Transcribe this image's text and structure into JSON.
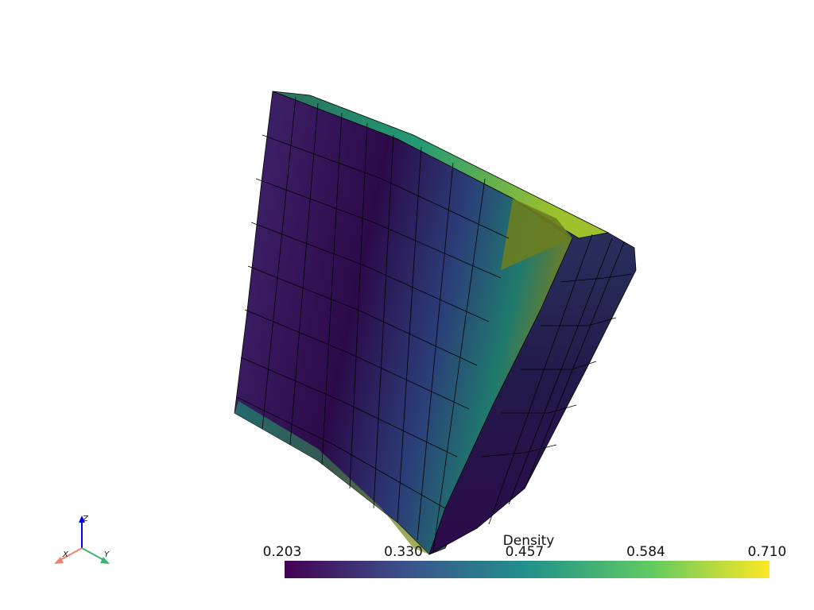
{
  "scalar_bar": {
    "title": "Density",
    "ticks": [
      "0.203",
      "0.330",
      "0.457",
      "0.584",
      "0.710"
    ]
  },
  "axes_widget": {
    "x_label": "X",
    "y_label": "Y",
    "z_label": "Z"
  }
}
